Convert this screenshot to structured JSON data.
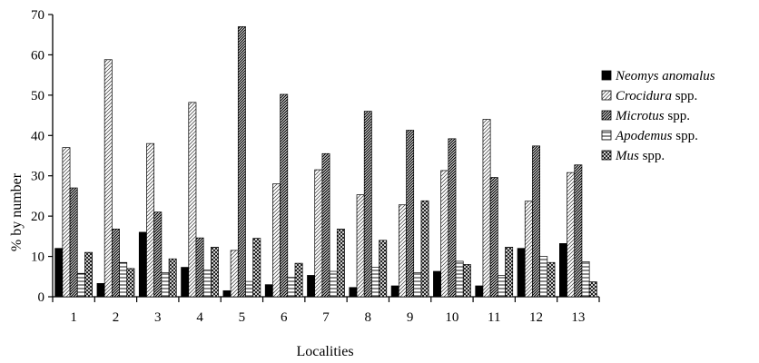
{
  "chart_data": {
    "type": "bar",
    "xlabel": "Localities",
    "ylabel": "% by number",
    "ylim": [
      0,
      70
    ],
    "yticks": [
      0,
      10,
      20,
      30,
      40,
      50,
      60,
      70
    ],
    "categories": [
      "1",
      "2",
      "3",
      "4",
      "5",
      "6",
      "7",
      "8",
      "9",
      "10",
      "11",
      "12",
      "13"
    ],
    "legend_position": "right",
    "series": [
      {
        "name": "Neomys anomalus",
        "name_italic": "Neomys anomalus",
        "name_suffix": "",
        "pattern": "solid",
        "values": [
          12,
          3.3,
          16,
          7.3,
          1.5,
          3,
          5.3,
          2.3,
          2.7,
          6.3,
          2.7,
          12,
          13.2
        ]
      },
      {
        "name": "Crocidura spp.",
        "name_italic": "Crocidura",
        "name_suffix": " spp.",
        "pattern": "diag-light",
        "values": [
          37,
          58.8,
          38,
          48.2,
          11.5,
          28,
          31.5,
          25.3,
          22.8,
          31.3,
          44,
          23.7,
          30.8
        ]
      },
      {
        "name": "Microtus spp.",
        "name_italic": "Microtus",
        "name_suffix": " spp.",
        "pattern": "diag-dense",
        "values": [
          27,
          16.8,
          21,
          14.6,
          67,
          50.2,
          35.5,
          46,
          41.3,
          39.2,
          29.6,
          37.4,
          32.7
        ]
      },
      {
        "name": "Apodemus spp.",
        "name_italic": "Apodemus",
        "name_suffix": " spp.",
        "pattern": "horizontal",
        "values": [
          5.8,
          8.5,
          6,
          6.6,
          3.8,
          4.8,
          6.3,
          7.3,
          6,
          8.8,
          5.3,
          10,
          8.7
        ]
      },
      {
        "name": "Mus spp.",
        "name_italic": "Mus",
        "name_suffix": " spp.",
        "pattern": "crosshatch",
        "values": [
          11,
          7,
          9.4,
          12.3,
          14.5,
          8.3,
          16.8,
          14,
          23.8,
          8,
          12.3,
          8.5,
          3.7
        ]
      }
    ]
  }
}
